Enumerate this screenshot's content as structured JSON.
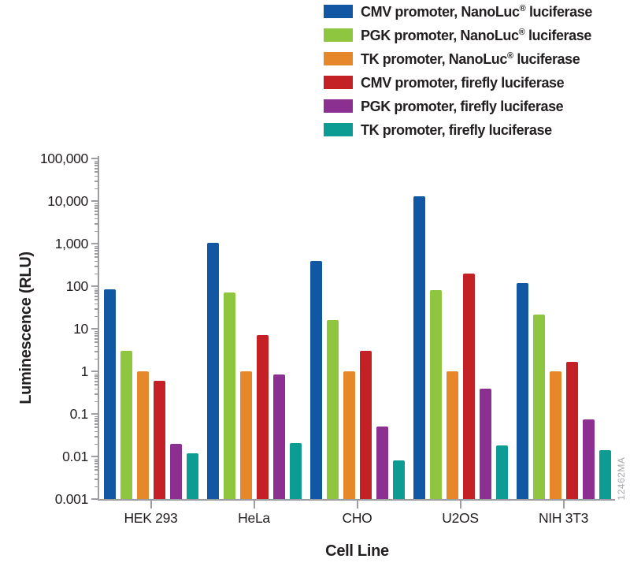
{
  "watermark": "12462MA",
  "colors": {
    "axis": "#9b9da0",
    "text": "#231f20",
    "watermark": "#a7a9ac"
  },
  "chart_data": {
    "type": "bar",
    "scale": "log-y",
    "title": "",
    "xlabel": "Cell Line",
    "ylabel": "Luminescence (RLU)",
    "ylim": [
      0.001,
      100000
    ],
    "ytick_labels": [
      "100,000",
      "10,000",
      "1,000",
      "100",
      "10",
      "1",
      "0.1",
      "0.01",
      "0.001"
    ],
    "grid": false,
    "legend_position": "top-right",
    "categories": [
      "HEK 293",
      "HeLa",
      "CHO",
      "U2OS",
      "NIH 3T3"
    ],
    "series": [
      {
        "name": "CMV promoter, NanoLuc® luciferase",
        "color": "#1257a4",
        "values": [
          85,
          1050,
          400,
          13000,
          120
        ]
      },
      {
        "name": "PGK promoter, NanoLuc® luciferase",
        "color": "#8ec73f",
        "values": [
          3,
          70,
          16,
          80,
          22
        ]
      },
      {
        "name": "TK promoter, NanoLuc® luciferase",
        "color": "#e6872a",
        "values": [
          1.0,
          1.0,
          1.0,
          1.0,
          1.0
        ]
      },
      {
        "name": "CMV promoter, firefly luciferase",
        "color": "#c42127",
        "values": [
          0.6,
          7,
          3,
          200,
          1.7
        ]
      },
      {
        "name": "PGK promoter, firefly luciferase",
        "color": "#8b3090",
        "values": [
          0.02,
          0.85,
          0.05,
          0.4,
          0.075
        ]
      },
      {
        "name": "TK promoter, firefly luciferase",
        "color": "#0d9c94",
        "values": [
          0.012,
          0.021,
          0.008,
          0.018,
          0.014
        ]
      }
    ]
  }
}
